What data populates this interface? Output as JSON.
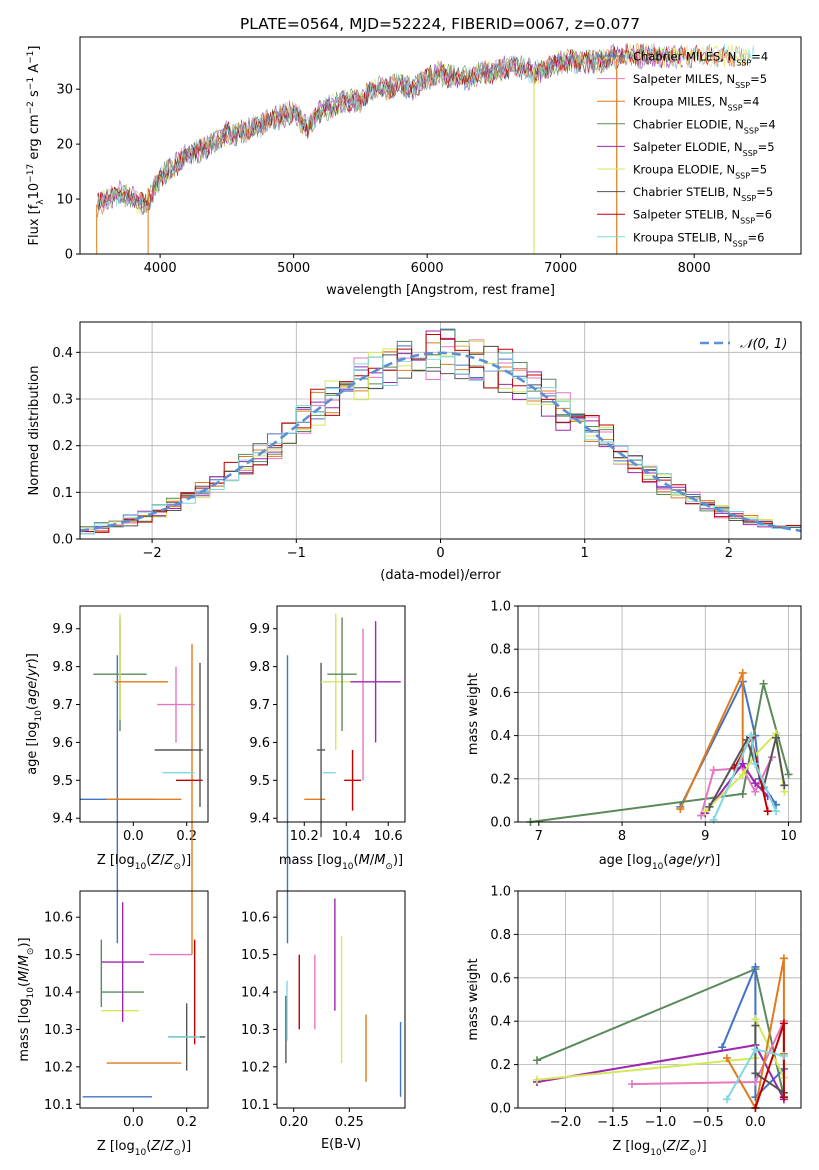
{
  "figure_title": "PLATE=0564, MJD=52224, FIBERID=0067, z=0.077",
  "colors": {
    "Chabrier MILES": "#4472c4",
    "Salpeter MILES": "#e377c2",
    "Kroupa MILES": "#e07b1a",
    "Chabrier ELODIE": "#5a8a5a",
    "Salpeter ELODIE": "#9c27b0",
    "Kroupa ELODIE": "#d4e85a",
    "Chabrier STELIB": "#555555",
    "Salpeter STELIB": "#c00000",
    "Kroupa STELIB": "#7fd8e0"
  },
  "chart_data": [
    {
      "type": "line",
      "panel": "spectrum",
      "title": "PLATE=0564, MJD=52224, FIBERID=0067, z=0.077",
      "xlabel": "wavelength [Angstrom, rest frame]",
      "ylabel": "Flux [f$_\\lambda$10$^{-17}$ erg cm$^{-2}$ s$^{-1}$ A$^{-1}$]",
      "ylabel_parts": [
        "Flux [f",
        "λ",
        "10",
        "−17",
        " erg cm",
        "−2",
        " s",
        "−1",
        " A",
        "−1",
        "]"
      ],
      "xlim": [
        3400,
        8800
      ],
      "ylim": [
        0,
        39.5
      ],
      "xticks": [
        4000,
        5000,
        6000,
        7000,
        8000
      ],
      "yticks": [
        0,
        10,
        20,
        30
      ],
      "legend_placement": "right",
      "legend": [
        {
          "name": "Chabrier MILES",
          "nssp": "4"
        },
        {
          "name": "Salpeter MILES",
          "nssp": "5"
        },
        {
          "name": "Kroupa MILES",
          "nssp": "4"
        },
        {
          "name": "Chabrier ELODIE",
          "nssp": "4"
        },
        {
          "name": "Salpeter ELODIE",
          "nssp": "5"
        },
        {
          "name": "Kroupa ELODIE",
          "nssp": "5"
        },
        {
          "name": "Chabrier STELIB",
          "nssp": "5"
        },
        {
          "name": "Salpeter STELIB",
          "nssp": "6"
        },
        {
          "name": "Kroupa STELIB",
          "nssp": "6"
        }
      ],
      "series_x": [
        3530,
        3600,
        3700,
        3800,
        3900,
        4000,
        4100,
        4200,
        4300,
        4400,
        4500,
        4600,
        4700,
        4800,
        4900,
        5000,
        5100,
        5200,
        5300,
        5400,
        5500,
        5600,
        5700,
        5800,
        5900,
        6000,
        6100,
        6200,
        6300,
        6400,
        6500,
        6600,
        6700,
        6800,
        6900,
        7000,
        7100,
        7200,
        7300,
        7400,
        7500,
        7600,
        7700,
        7800,
        7900,
        8000,
        8100,
        8200,
        8300,
        8400
      ],
      "series_y": [
        9,
        10,
        11,
        10,
        9,
        14,
        16,
        18,
        19,
        20,
        22,
        22,
        23,
        24,
        25,
        26,
        23,
        26,
        27,
        28,
        28,
        30,
        30,
        31,
        30,
        32,
        33,
        32,
        32,
        33,
        33,
        34,
        34,
        33,
        34,
        35,
        35,
        35,
        35,
        36,
        36,
        36,
        36,
        36,
        36,
        36,
        36,
        36,
        36,
        36
      ]
    },
    {
      "type": "bar",
      "panel": "residual-histogram",
      "xlabel": "(data-model)/error",
      "ylabel": "Normed distribution",
      "xlim": [
        -2.5,
        2.5
      ],
      "ylim": [
        0,
        0.465
      ],
      "xticks": [
        -2,
        -1,
        0,
        1,
        2
      ],
      "xtick_labels": [
        "−2",
        "−1",
        "0",
        "1",
        "2"
      ],
      "yticks": [
        0.0,
        0.1,
        0.2,
        0.3,
        0.4
      ],
      "grid": true,
      "legend_placement": "top-right",
      "reference_curve": {
        "name": "𝒩(0, 1)",
        "mean": 0,
        "sigma": 1
      },
      "bins": 50
    },
    {
      "type": "scatter",
      "panel": "age-vs-Z",
      "xlabel": "Z [log10(Z/Z⊙)]",
      "ylabel": "age [log10(age/yr)]",
      "xlim": [
        -0.2,
        0.28
      ],
      "ylim": [
        9.39,
        9.96
      ],
      "xticks": [
        0.0,
        0.2
      ],
      "yticks": [
        9.4,
        9.5,
        9.6,
        9.7,
        9.8,
        9.9
      ],
      "points": [
        {
          "series": "Chabrier MILES",
          "x": -0.06,
          "y": 9.45,
          "xerr": 0.14,
          "yerr": 0.38
        },
        {
          "series": "Kroupa MILES",
          "x": 0.04,
          "y": 9.45,
          "xerr": 0.14,
          "yerr": 0.0
        },
        {
          "series": "Kroupa MILES",
          "x": 0.22,
          "y": 9.45,
          "xerr": 0.0,
          "yerr": 0.41
        },
        {
          "series": "Chabrier ELODIE",
          "x": -0.05,
          "y": 9.78,
          "xerr": 0.1,
          "yerr": 0.15
        },
        {
          "series": "Kroupa ELODIE",
          "x": -0.05,
          "y": 9.8,
          "xerr": 0.0,
          "yerr": 0.14
        },
        {
          "series": "Kroupa MILES",
          "x": 0.03,
          "y": 9.76,
          "xerr": 0.1,
          "yerr": 0.0
        },
        {
          "series": "Salpeter MILES",
          "x": 0.16,
          "y": 9.7,
          "xerr": 0.07,
          "yerr": 0.1
        },
        {
          "series": "Chabrier STELIB",
          "x": 0.17,
          "y": 9.58,
          "xerr": 0.09,
          "yerr": 0.0
        },
        {
          "series": "Kroupa STELIB",
          "x": 0.17,
          "y": 9.52,
          "xerr": 0.06,
          "yerr": 0.0
        },
        {
          "series": "Salpeter STELIB",
          "x": 0.21,
          "y": 9.5,
          "xerr": 0.05,
          "yerr": 0.0
        },
        {
          "series": "Chabrier STELIB",
          "x": 0.25,
          "y": 9.62,
          "xerr": 0.0,
          "yerr": 0.19
        }
      ]
    },
    {
      "type": "scatter",
      "panel": "age-vs-mass",
      "xlabel": "mass [log10(M/M⊙)]",
      "xlim": [
        10.07,
        10.68
      ],
      "ylim": [
        9.39,
        9.96
      ],
      "xticks": [
        10.2,
        10.4,
        10.6
      ],
      "yticks": [
        9.4,
        9.5,
        9.6,
        9.7,
        9.8,
        9.9
      ],
      "points": [
        {
          "series": "Chabrier MILES",
          "x": 10.12,
          "y": 9.45,
          "xerr": 0.0,
          "yerr": 0.38
        },
        {
          "series": "Kroupa MILES",
          "x": 10.25,
          "y": 9.45,
          "xerr": 0.05,
          "yerr": 0.0
        },
        {
          "series": "Chabrier STELIB",
          "x": 10.28,
          "y": 9.58,
          "xerr": 0.02,
          "yerr": 0.23
        },
        {
          "series": "Kroupa STELIB",
          "x": 10.32,
          "y": 9.52,
          "xerr": 0.03,
          "yerr": 0.0
        },
        {
          "series": "Kroupa ELODIE",
          "x": 10.35,
          "y": 9.76,
          "xerr": 0.07,
          "yerr": 0.18
        },
        {
          "series": "Chabrier ELODIE",
          "x": 10.38,
          "y": 9.78,
          "xerr": 0.07,
          "yerr": 0.15
        },
        {
          "series": "Salpeter STELIB",
          "x": 10.43,
          "y": 9.5,
          "xerr": 0.04,
          "yerr": 0.08
        },
        {
          "series": "Salpeter MILES",
          "x": 10.48,
          "y": 9.7,
          "xerr": 0.0,
          "yerr": 0.2
        },
        {
          "series": "Salpeter ELODIE",
          "x": 10.54,
          "y": 9.76,
          "xerr": 0.12,
          "yerr": 0.16
        }
      ]
    },
    {
      "type": "line",
      "panel": "mass-weight-vs-age",
      "xlabel": "age [log10(age/yr)]",
      "ylabel": "mass weight",
      "xlim": [
        6.75,
        10.15
      ],
      "ylim": [
        0,
        1
      ],
      "xticks": [
        7,
        8,
        9,
        10
      ],
      "yticks": [
        0.0,
        0.2,
        0.4,
        0.6,
        0.8,
        1.0
      ],
      "grid": true,
      "series": [
        {
          "series": "Chabrier MILES",
          "x": [
            8.7,
            9.45,
            9.6,
            9.65,
            9.85
          ],
          "y": [
            0.07,
            0.65,
            0.4,
            0.2,
            0.08
          ]
        },
        {
          "series": "Kroupa MILES",
          "x": [
            8.7,
            9.45,
            9.45
          ],
          "y": [
            0.06,
            0.69,
            0.25
          ]
        },
        {
          "series": "Chabrier ELODIE",
          "x": [
            6.9,
            9.45,
            9.7,
            10.0
          ],
          "y": [
            0.0,
            0.13,
            0.64,
            0.22
          ]
        },
        {
          "series": "Salpeter MILES",
          "x": [
            8.95,
            9.1,
            9.45,
            9.6,
            9.8
          ],
          "y": [
            0.03,
            0.24,
            0.25,
            0.14,
            0.3
          ]
        },
        {
          "series": "Salpeter ELODIE",
          "x": [
            9.0,
            9.45,
            9.6,
            9.75
          ],
          "y": [
            0.04,
            0.27,
            0.18,
            0.12
          ]
        },
        {
          "series": "Kroupa ELODIE",
          "x": [
            9.0,
            9.45,
            9.6,
            9.85,
            9.95
          ],
          "y": [
            0.05,
            0.22,
            0.31,
            0.41,
            0.14
          ]
        },
        {
          "series": "Chabrier STELIB",
          "x": [
            9.05,
            9.5,
            9.7,
            9.85,
            9.95
          ],
          "y": [
            0.07,
            0.38,
            0.16,
            0.39,
            0.17
          ]
        },
        {
          "series": "Salpeter STELIB",
          "x": [
            9.35,
            9.55,
            9.75
          ],
          "y": [
            0.25,
            0.39,
            0.05
          ]
        },
        {
          "series": "Kroupa STELIB",
          "x": [
            9.1,
            9.55,
            9.6,
            9.85
          ],
          "y": [
            0.01,
            0.4,
            0.27,
            0.05
          ]
        }
      ]
    },
    {
      "type": "scatter",
      "panel": "mass-vs-Z",
      "xlabel": "Z [log10(Z/Z⊙)]",
      "ylabel": "mass [log10(M/M⊙)]",
      "xlim": [
        -0.2,
        0.28
      ],
      "ylim": [
        10.09,
        10.67
      ],
      "xticks": [
        0.0,
        0.2
      ],
      "yticks": [
        10.1,
        10.2,
        10.3,
        10.4,
        10.5,
        10.6
      ],
      "points": [
        {
          "series": "Chabrier MILES",
          "x": -0.06,
          "y": 10.12,
          "xerr": 0.13,
          "yerr": 0.0
        },
        {
          "series": "Chabrier ELODIE",
          "x": -0.12,
          "y": 10.45,
          "xerr": 0.0,
          "yerr": 0.09
        },
        {
          "series": "Chabrier ELODIE",
          "x": -0.04,
          "y": 10.4,
          "xerr": 0.08,
          "yerr": 0.0
        },
        {
          "series": "Kroupa ELODIE",
          "x": -0.05,
          "y": 10.35,
          "xerr": 0.07,
          "yerr": 0.0
        },
        {
          "series": "Salpeter ELODIE",
          "x": -0.04,
          "y": 10.48,
          "xerr": 0.08,
          "yerr": 0.16
        },
        {
          "series": "Salpeter MILES",
          "x": 0.14,
          "y": 10.5,
          "xerr": 0.08,
          "yerr": 0.0
        },
        {
          "series": "Salpeter STELIB",
          "x": 0.23,
          "y": 10.4,
          "xerr": 0.0,
          "yerr": 0.14
        },
        {
          "series": "Kroupa MILES",
          "x": 0.04,
          "y": 10.21,
          "xerr": 0.14,
          "yerr": 0.0
        },
        {
          "series": "Chabrier STELIB",
          "x": 0.2,
          "y": 10.28,
          "xerr": 0.07,
          "yerr": 0.09
        },
        {
          "series": "Kroupa STELIB",
          "x": 0.19,
          "y": 10.28,
          "xerr": 0.06,
          "yerr": 0.0
        }
      ]
    },
    {
      "type": "scatter",
      "panel": "mass-vs-EBV",
      "xlabel": "E(B-V)",
      "xlim": [
        0.185,
        0.3
      ],
      "ylim": [
        10.09,
        10.67
      ],
      "xticks": [
        0.2,
        0.25
      ],
      "yticks": [
        10.1,
        10.2,
        10.3,
        10.4,
        10.5,
        10.6
      ],
      "points": [
        {
          "series": "Chabrier STELIB",
          "x": 0.193,
          "y": 10.3,
          "yerr": 0.09
        },
        {
          "series": "Kroupa STELIB",
          "x": 0.194,
          "y": 10.35,
          "yerr": 0.08
        },
        {
          "series": "Salpeter STELIB",
          "x": 0.205,
          "y": 10.4,
          "yerr": 0.1
        },
        {
          "series": "Salpeter MILES",
          "x": 0.219,
          "y": 10.4,
          "yerr": 0.1
        },
        {
          "series": "Salpeter ELODIE",
          "x": 0.237,
          "y": 10.5,
          "yerr": 0.15
        },
        {
          "series": "Kroupa ELODIE",
          "x": 0.243,
          "y": 10.38,
          "yerr": 0.17
        },
        {
          "series": "Kroupa MILES",
          "x": 0.265,
          "y": 10.25,
          "yerr": 0.09
        },
        {
          "series": "Chabrier MILES",
          "x": 0.296,
          "y": 10.22,
          "yerr": 0.1
        }
      ]
    },
    {
      "type": "line",
      "panel": "mass-weight-vs-Z",
      "xlabel": "Z [log10(Z/Z⊙)]",
      "ylabel": "mass weight",
      "xlim": [
        -2.5,
        0.48
      ],
      "ylim": [
        0,
        1
      ],
      "xticks": [
        -2.0,
        -1.5,
        -1.0,
        -0.5,
        0.0
      ],
      "xtick_labels": [
        "−2.0",
        "−1.5",
        "−1.0",
        "−0.5",
        "0.0"
      ],
      "yticks": [
        0.0,
        0.2,
        0.4,
        0.6,
        0.8,
        1.0
      ],
      "grid": true,
      "series": [
        {
          "series": "Chabrier ELODIE",
          "x": [
            -2.3,
            0.0,
            0.3,
            0.3
          ],
          "y": [
            0.22,
            0.64,
            0.05,
            0.4
          ]
        },
        {
          "series": "Chabrier MILES",
          "x": [
            -0.35,
            0.0,
            0.0,
            0.3
          ],
          "y": [
            0.28,
            0.65,
            0.05,
            0.18
          ]
        },
        {
          "series": "Salpeter ELODIE",
          "x": [
            -2.3,
            0.0,
            0.3
          ],
          "y": [
            0.12,
            0.29,
            0.04
          ]
        },
        {
          "series": "Kroupa ELODIE",
          "x": [
            -2.3,
            0.0,
            0.0,
            0.3
          ],
          "y": [
            0.13,
            0.23,
            0.41,
            0.14
          ]
        },
        {
          "series": "Salpeter MILES",
          "x": [
            -1.3,
            0.0,
            0.3
          ],
          "y": [
            0.11,
            0.12,
            0.4
          ]
        },
        {
          "series": "Kroupa MILES",
          "x": [
            -0.3,
            0.0,
            0.3,
            0.3
          ],
          "y": [
            0.23,
            0.0,
            0.69,
            0.25
          ]
        },
        {
          "series": "Chabrier STELIB",
          "x": [
            0.0,
            0.0,
            0.3
          ],
          "y": [
            0.38,
            0.16,
            0.07
          ]
        },
        {
          "series": "Salpeter STELIB",
          "x": [
            0.0,
            0.3,
            0.3
          ],
          "y": [
            0.0,
            0.39,
            0.05
          ]
        },
        {
          "series": "Kroupa STELIB",
          "x": [
            -0.3,
            0.0,
            0.3
          ],
          "y": [
            0.04,
            0.27,
            0.24
          ]
        }
      ]
    }
  ]
}
